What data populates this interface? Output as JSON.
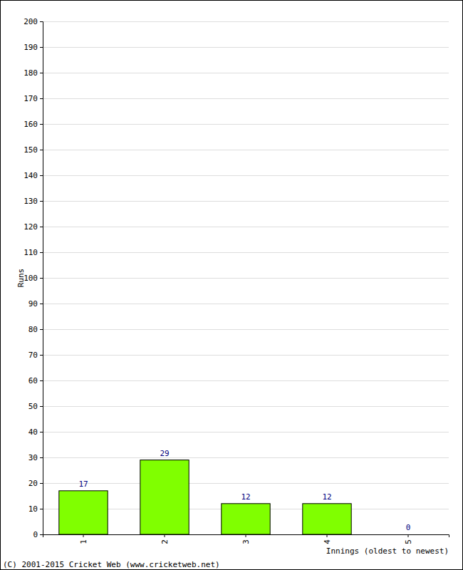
{
  "chart_data": {
    "type": "bar",
    "categories": [
      "1",
      "2",
      "3",
      "4",
      "5"
    ],
    "values": [
      17,
      29,
      12,
      12,
      0
    ],
    "color": "#80ff00",
    "y_label": "Runs",
    "x_label": "Innings (oldest to newest)",
    "annotations": [
      "(C) 2001-2015 Cricket Web (www.cricketweb.net)"
    ],
    "ylim": [
      0,
      200
    ],
    "yticks": [
      0,
      10,
      20,
      30,
      40,
      50,
      60,
      70,
      80,
      90,
      100,
      110,
      120,
      130,
      140,
      150,
      160,
      170,
      180,
      190,
      200
    ],
    "grid": true,
    "data_labels": true
  }
}
